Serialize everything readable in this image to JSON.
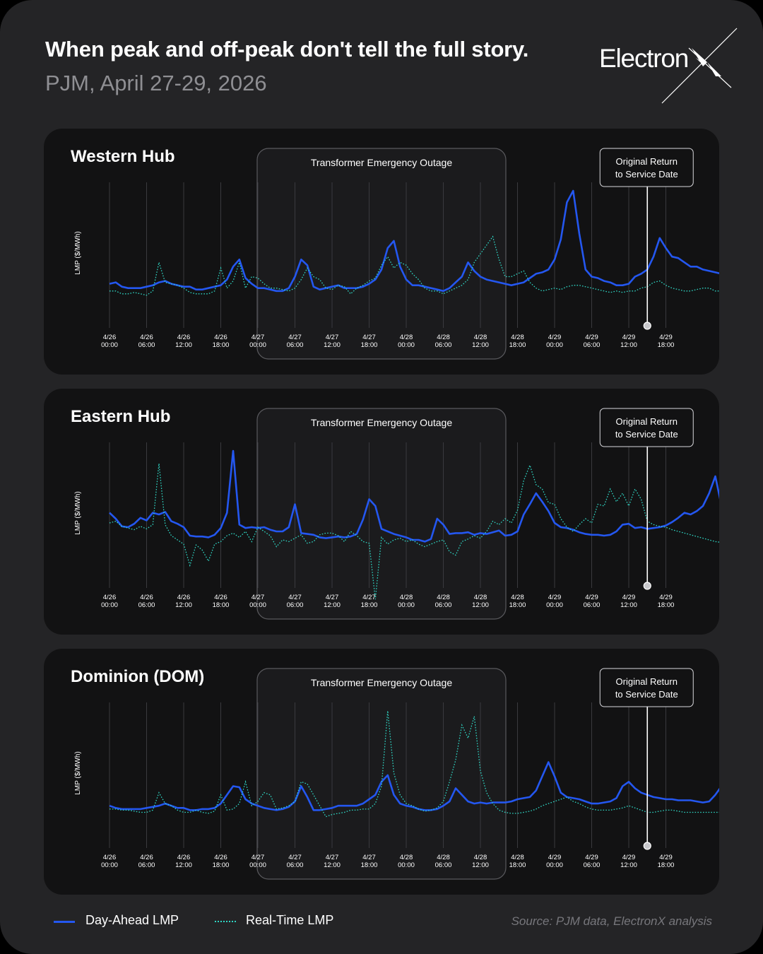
{
  "header": {
    "title": "When peak and off-peak don't tell the full story.",
    "subtitle": "PJM, April 27-29, 2026"
  },
  "logo": {
    "text": "Electron",
    "mark": "X"
  },
  "annotations": {
    "outage_label": "Transformer Emergency Outage",
    "return_label_line1": "Original Return",
    "return_label_line2": "to Service Date"
  },
  "legend": {
    "day_ahead": "Day-Ahead LMP",
    "real_time": "Real-Time LMP"
  },
  "source": "Source: PJM data, ElectronX analysis",
  "colors": {
    "background": "#242426",
    "panel": "#121213",
    "day_ahead": "#2457f0",
    "real_time": "#2fd6c4",
    "grid": "#3a3a3e",
    "outage_fill": "#1b1b1d",
    "outage_stroke": "#5a5a5e"
  },
  "chart_data": [
    {
      "type": "line",
      "title": "Western Hub",
      "ylabel": "LMP ($/MWh)",
      "x_ticks": [
        [
          "4/26",
          "00:00"
        ],
        [
          "4/26",
          "06:00"
        ],
        [
          "4/26",
          "12:00"
        ],
        [
          "4/26",
          "18:00"
        ],
        [
          "4/27",
          "00:00"
        ],
        [
          "4/27",
          "06:00"
        ],
        [
          "4/27",
          "12:00"
        ],
        [
          "4/27",
          "18:00"
        ],
        [
          "4/28",
          "00:00"
        ],
        [
          "4/28",
          "06:00"
        ],
        [
          "4/28",
          "12:00"
        ],
        [
          "4/28",
          "18:00"
        ],
        [
          "4/29",
          "00:00"
        ],
        [
          "4/29",
          "06:00"
        ],
        [
          "4/29",
          "12:00"
        ],
        [
          "4/29",
          "18:00"
        ]
      ],
      "x_hours_start": "4/26 00:00",
      "x_step_hours": 1,
      "outage_hours": [
        24,
        64
      ],
      "return_hour": 87,
      "series": [
        {
          "name": "Day-Ahead LMP",
          "values": [
            15,
            16,
            13,
            12,
            12,
            12,
            13,
            14,
            16,
            17,
            15,
            14,
            13,
            13,
            11,
            11,
            12,
            13,
            14,
            18,
            27,
            32,
            19,
            15,
            12,
            12,
            11,
            10,
            10,
            12,
            20,
            32,
            28,
            13,
            11,
            12,
            13,
            14,
            12,
            12,
            12,
            13,
            15,
            18,
            25,
            40,
            45,
            27,
            18,
            14,
            14,
            13,
            12,
            11,
            10,
            12,
            16,
            20,
            30,
            24,
            20,
            18,
            17,
            16,
            15,
            14,
            15,
            16,
            19,
            22,
            23,
            25,
            32,
            46,
            72,
            80,
            50,
            25,
            20,
            19,
            17,
            16,
            14,
            14,
            15,
            20,
            22,
            25,
            34,
            47,
            40,
            34,
            33,
            30,
            27,
            27,
            25,
            24,
            23,
            22,
            22,
            21,
            21,
            20,
            19,
            19,
            18,
            17,
            16,
            15,
            14,
            14,
            13,
            12,
            12,
            11,
            11,
            10,
            10
          ]
        },
        {
          "name": "Real-Time LMP",
          "values": [
            10,
            10,
            8,
            8,
            9,
            8,
            7,
            10,
            30,
            16,
            15,
            14,
            12,
            9,
            8,
            8,
            8,
            10,
            26,
            12,
            17,
            30,
            12,
            20,
            19,
            15,
            12,
            12,
            11,
            10,
            12,
            18,
            26,
            20,
            18,
            12,
            11,
            14,
            13,
            8,
            12,
            14,
            17,
            19,
            28,
            34,
            26,
            30,
            28,
            22,
            18,
            12,
            10,
            10,
            8,
            10,
            12,
            14,
            18,
            30,
            36,
            42,
            48,
            32,
            20,
            20,
            22,
            24,
            16,
            12,
            10,
            11,
            12,
            11,
            13,
            14,
            14,
            13,
            12,
            11,
            10,
            9,
            10,
            9,
            10,
            10,
            12,
            13,
            16,
            17,
            14,
            12,
            11,
            10,
            10,
            11,
            12,
            12,
            10,
            10,
            10,
            10,
            10,
            10,
            10,
            10,
            10,
            10,
            10,
            10,
            10,
            10,
            10,
            10,
            10,
            10,
            10,
            10,
            10
          ]
        }
      ]
    },
    {
      "type": "line",
      "title": "Eastern Hub",
      "ylabel": "LMP ($/MWh)",
      "x_ticks": [
        [
          "4/26",
          "00:00"
        ],
        [
          "4/26",
          "06:00"
        ],
        [
          "4/26",
          "12:00"
        ],
        [
          "4/26",
          "18:00"
        ],
        [
          "4/27",
          "00:00"
        ],
        [
          "4/27",
          "06:00"
        ],
        [
          "4/27",
          "12:00"
        ],
        [
          "4/27",
          "18:00"
        ],
        [
          "4/28",
          "00:00"
        ],
        [
          "4/28",
          "06:00"
        ],
        [
          "4/28",
          "12:00"
        ],
        [
          "4/28",
          "18:00"
        ],
        [
          "4/29",
          "00:00"
        ],
        [
          "4/29",
          "06:00"
        ],
        [
          "4/29",
          "12:00"
        ],
        [
          "4/29",
          "18:00"
        ]
      ],
      "x_hours_start": "4/26 00:00",
      "x_step_hours": 1,
      "outage_hours": [
        24,
        64
      ],
      "return_hour": 87,
      "series": [
        {
          "name": "Day-Ahead LMP",
          "values": [
            62,
            55,
            46,
            45,
            49,
            56,
            53,
            62,
            60,
            63,
            52,
            49,
            45,
            35,
            34,
            34,
            33,
            36,
            44,
            62,
            135,
            48,
            44,
            45,
            44,
            45,
            42,
            40,
            40,
            45,
            72,
            38,
            37,
            36,
            33,
            32,
            33,
            34,
            33,
            34,
            37,
            54,
            78,
            70,
            43,
            40,
            37,
            35,
            33,
            30,
            30,
            28,
            31,
            55,
            48,
            37,
            38,
            38,
            39,
            36,
            38,
            37,
            39,
            41,
            35,
            36,
            40,
            60,
            72,
            85,
            75,
            64,
            50,
            45,
            44,
            42,
            39,
            37,
            36,
            36,
            35,
            36,
            40,
            48,
            49,
            44,
            45,
            43,
            44,
            45,
            47,
            51,
            56,
            62,
            60,
            64,
            70,
            85,
            105,
            70,
            64,
            60,
            56,
            52,
            50,
            48,
            47,
            46,
            45,
            44,
            43,
            42,
            41,
            40,
            40,
            40,
            40,
            40,
            40
          ]
        },
        {
          "name": "Real-Time LMP",
          "values": [
            50,
            52,
            46,
            44,
            42,
            46,
            43,
            48,
            120,
            48,
            35,
            30,
            25,
            0,
            24,
            18,
            5,
            25,
            28,
            35,
            38,
            33,
            40,
            28,
            45,
            40,
            35,
            22,
            30,
            28,
            32,
            36,
            26,
            28,
            36,
            38,
            38,
            35,
            28,
            40,
            35,
            28,
            26,
            -40,
            33,
            25,
            30,
            32,
            28,
            30,
            25,
            22,
            25,
            28,
            30,
            16,
            12,
            28,
            31,
            35,
            32,
            40,
            52,
            48,
            55,
            50,
            65,
            100,
            118,
            95,
            90,
            74,
            72,
            55,
            45,
            40,
            48,
            55,
            50,
            72,
            70,
            90,
            75,
            85,
            70,
            90,
            78,
            52,
            48,
            46,
            45,
            42,
            40,
            38,
            36,
            34,
            32,
            30,
            28,
            27,
            26,
            25,
            24,
            23,
            22,
            21,
            20,
            19,
            18,
            17,
            16,
            15,
            14,
            13,
            12,
            11,
            10,
            9,
            8
          ]
        }
      ]
    },
    {
      "type": "line",
      "title": "Dominion (DOM)",
      "ylabel": "LMP ($/MWh)",
      "x_ticks": [
        [
          "4/26",
          "00:00"
        ],
        [
          "4/26",
          "06:00"
        ],
        [
          "4/26",
          "12:00"
        ],
        [
          "4/26",
          "18:00"
        ],
        [
          "4/27",
          "00:00"
        ],
        [
          "4/27",
          "06:00"
        ],
        [
          "4/27",
          "12:00"
        ],
        [
          "4/27",
          "18:00"
        ],
        [
          "4/28",
          "00:00"
        ],
        [
          "4/28",
          "06:00"
        ],
        [
          "4/28",
          "12:00"
        ],
        [
          "4/28",
          "18:00"
        ],
        [
          "4/29",
          "00:00"
        ],
        [
          "4/29",
          "06:00"
        ],
        [
          "4/29",
          "12:00"
        ],
        [
          "4/29",
          "18:00"
        ]
      ],
      "x_hours_start": "4/26 00:00",
      "x_step_hours": 1,
      "outage_hours": [
        24,
        64
      ],
      "return_hour": 87,
      "series": [
        {
          "name": "Day-Ahead LMP",
          "values": [
            18,
            16,
            15,
            15,
            15,
            15,
            16,
            17,
            18,
            20,
            18,
            16,
            16,
            14,
            14,
            15,
            15,
            16,
            20,
            28,
            36,
            35,
            24,
            20,
            18,
            16,
            15,
            14,
            15,
            17,
            22,
            36,
            26,
            14,
            14,
            15,
            16,
            18,
            18,
            18,
            18,
            20,
            24,
            28,
            40,
            46,
            28,
            20,
            18,
            17,
            15,
            14,
            14,
            15,
            18,
            22,
            34,
            28,
            22,
            20,
            21,
            20,
            21,
            21,
            21,
            22,
            24,
            25,
            26,
            32,
            45,
            58,
            45,
            30,
            26,
            25,
            24,
            22,
            20,
            20,
            21,
            22,
            25,
            36,
            40,
            34,
            30,
            28,
            26,
            25,
            24,
            24,
            23,
            23,
            23,
            22,
            21,
            22,
            28,
            36,
            28,
            22,
            20,
            19,
            18,
            18,
            17,
            17,
            16,
            16,
            15,
            15,
            14,
            14,
            14,
            13,
            13,
            13,
            13
          ]
        },
        {
          "name": "Real-Time LMP",
          "values": [
            15,
            15,
            14,
            14,
            13,
            12,
            12,
            14,
            30,
            20,
            18,
            14,
            12,
            12,
            14,
            12,
            11,
            13,
            28,
            14,
            15,
            20,
            40,
            18,
            22,
            30,
            28,
            15,
            16,
            18,
            22,
            40,
            38,
            28,
            18,
            8,
            10,
            11,
            12,
            14,
            14,
            15,
            15,
            20,
            36,
            105,
            48,
            28,
            20,
            18,
            15,
            13,
            14,
            16,
            22,
            40,
            60,
            92,
            80,
            100,
            50,
            30,
            20,
            14,
            12,
            11,
            11,
            12,
            13,
            15,
            18,
            20,
            22,
            24,
            26,
            22,
            20,
            17,
            15,
            14,
            14,
            14,
            15,
            16,
            18,
            16,
            14,
            12,
            12,
            13,
            14,
            14,
            13,
            12,
            12,
            12,
            12,
            12,
            12,
            12,
            12,
            12,
            12,
            12,
            12,
            12,
            12,
            12,
            12,
            12,
            12,
            12,
            12,
            12,
            12,
            12,
            12,
            12,
            12
          ]
        }
      ]
    }
  ]
}
